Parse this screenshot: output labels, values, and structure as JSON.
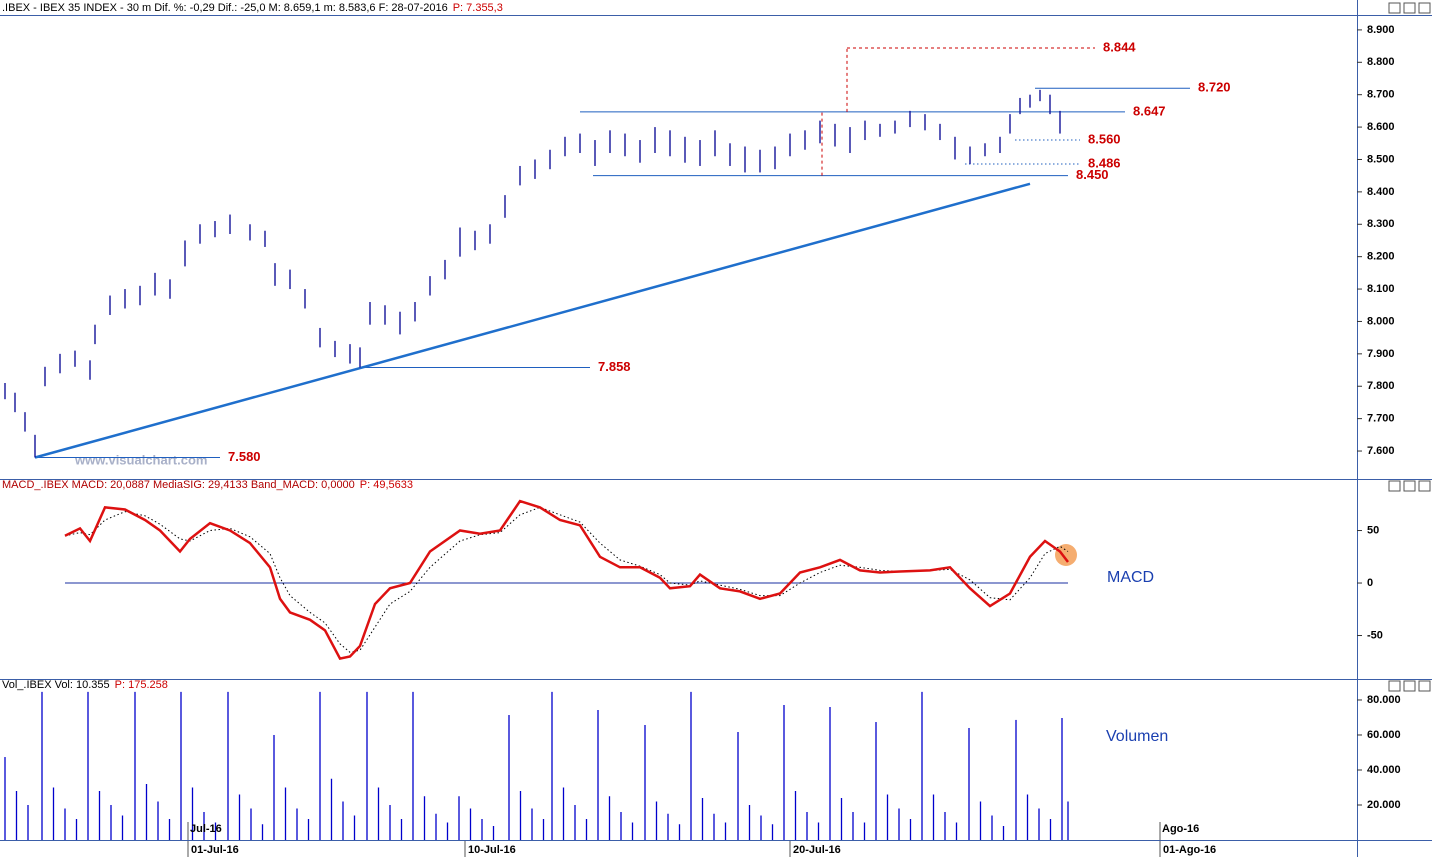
{
  "chart_data": [
    {
      "type": "range",
      "title": ".IBEX - IBEX 35 INDEX - 30 m  Dif. %: -0,29  Dif.: -25,0  M: 8.659,1  m: 8.583,6  F: 28-07-2016",
      "title_price": "P: 7.355,3",
      "watermark": "www.visualchart.com",
      "color": "#13139a",
      "xlim": [
        0,
        271.4
      ],
      "ylim": [
        7526,
        8946
      ],
      "yticks": [
        {
          "value": 7600,
          "label": "7.600"
        },
        {
          "value": 7700,
          "label": "7.700"
        },
        {
          "value": 7800,
          "label": "7.800"
        },
        {
          "value": 7900,
          "label": "7.900"
        },
        {
          "value": 8000,
          "label": "8.000"
        },
        {
          "value": 8100,
          "label": "8.100"
        },
        {
          "value": 8200,
          "label": "8.200"
        },
        {
          "value": 8300,
          "label": "8.300"
        },
        {
          "value": 8400,
          "label": "8.400"
        },
        {
          "value": 8500,
          "label": "8.500"
        },
        {
          "value": 8600,
          "label": "8.600"
        },
        {
          "value": 8700,
          "label": "8.700"
        },
        {
          "value": 8800,
          "label": "8.800"
        },
        {
          "value": 8900,
          "label": "8.900"
        }
      ],
      "x": [
        1,
        3,
        5,
        7,
        9,
        12,
        15,
        18,
        19,
        22,
        25,
        28,
        31,
        34,
        37,
        40,
        43,
        46,
        50,
        53,
        55,
        58,
        61,
        64,
        67,
        70,
        72,
        74,
        77,
        80,
        83,
        86,
        89,
        92,
        95,
        98,
        101,
        104,
        107,
        110,
        113,
        116,
        119,
        122,
        125,
        128,
        131,
        134,
        137,
        140,
        143,
        146,
        149,
        152,
        155,
        158,
        161,
        164,
        167,
        170,
        173,
        176,
        179,
        182,
        185,
        188,
        191,
        194,
        197,
        200,
        202,
        204,
        206,
        208,
        210,
        212
      ],
      "high": [
        7810,
        7780,
        7720,
        7650,
        7860,
        7900,
        7910,
        7880,
        7990,
        8080,
        8100,
        8110,
        8150,
        8130,
        8250,
        8300,
        8310,
        8330,
        8300,
        8280,
        8180,
        8160,
        8100,
        7980,
        7940,
        7930,
        7920,
        8060,
        8050,
        8030,
        8060,
        8140,
        8190,
        8290,
        8280,
        8300,
        8390,
        8480,
        8500,
        8530,
        8570,
        8580,
        8560,
        8590,
        8580,
        8560,
        8600,
        8590,
        8570,
        8560,
        8590,
        8550,
        8540,
        8530,
        8540,
        8580,
        8590,
        8620,
        8610,
        8600,
        8620,
        8610,
        8620,
        8650,
        8640,
        8610,
        8570,
        8540,
        8550,
        8570,
        8640,
        8690,
        8700,
        8715,
        8700,
        8650
      ],
      "low": [
        7760,
        7720,
        7660,
        7580,
        7800,
        7840,
        7860,
        7820,
        7930,
        8020,
        8040,
        8050,
        8080,
        8070,
        8170,
        8240,
        8260,
        8270,
        8250,
        8230,
        8110,
        8100,
        8040,
        7920,
        7890,
        7870,
        7858,
        7990,
        7990,
        7960,
        8000,
        8080,
        8130,
        8200,
        8220,
        8240,
        8320,
        8420,
        8440,
        8470,
        8510,
        8520,
        8480,
        8520,
        8510,
        8490,
        8520,
        8510,
        8490,
        8480,
        8510,
        8480,
        8460,
        8460,
        8470,
        8510,
        8530,
        8550,
        8540,
        8520,
        8560,
        8570,
        8580,
        8600,
        8590,
        8560,
        8500,
        8486,
        8510,
        8520,
        8580,
        8640,
        8660,
        8680,
        8640,
        8580
      ],
      "levels": [
        {
          "value": 8844,
          "label": "8.844",
          "x": [
            169.4,
            219
          ],
          "style": "dashed",
          "color": "#cc0000"
        },
        {
          "value": 8720,
          "label": "8.720",
          "x": [
            207,
            238
          ],
          "style": "solid",
          "color": "#1f5fbf"
        },
        {
          "value": 8647,
          "label": "8.647",
          "x": [
            116,
            225
          ],
          "style": "solid",
          "color": "#1f5fbf"
        },
        {
          "value": 8560,
          "label": "8.560",
          "x": [
            203,
            216
          ],
          "style": "dotted",
          "color": "#1f5fbf"
        },
        {
          "value": 8486,
          "label": "8.486",
          "x": [
            193,
            216
          ],
          "style": "dotted",
          "color": "#1f5fbf"
        },
        {
          "value": 8450,
          "label": "8.450",
          "x": [
            118.6,
            213.6
          ],
          "style": "solid",
          "color": "#1f5fbf"
        },
        {
          "value": 7858,
          "label": "7.858",
          "x": [
            73,
            118
          ],
          "style": "solid",
          "color": "#1f5fbf"
        },
        {
          "value": 7580,
          "label": "7.580",
          "x": [
            7,
            44
          ],
          "style": "solid",
          "color": "#1f5fbf"
        }
      ],
      "vlines": [
        {
          "x": 169.4,
          "range": [
            8647,
            8844
          ]
        },
        {
          "x": 164.4,
          "range": [
            8450,
            8647
          ]
        }
      ],
      "trendline": {
        "x": [
          7,
          206
        ],
        "values": [
          7580,
          8425
        ],
        "color": "#1f6fcc"
      }
    },
    {
      "type": "line",
      "title": "MACD_.IBEX MACD: 20,0887  MediaSIG: 29,4133  Band_MACD: 0,0000",
      "title_price": "P: 49,5633",
      "label": "MACD",
      "xlim": [
        0,
        271.4
      ],
      "ylim": [
        -87.6,
        88.6
      ],
      "yticks": [
        -50,
        0,
        50
      ],
      "x": [
        13,
        16,
        18,
        21,
        25,
        29,
        32,
        36,
        38,
        42,
        46,
        50,
        54,
        56,
        58,
        62,
        65,
        68,
        70,
        72,
        75,
        78,
        82,
        86,
        92,
        96,
        100,
        104,
        108,
        112,
        116,
        120,
        124,
        128,
        132,
        134,
        138,
        140,
        144,
        148,
        152,
        156,
        160,
        164,
        168,
        172,
        176,
        180,
        186,
        190,
        194,
        198,
        202,
        206,
        209,
        212,
        213.6
      ],
      "series": [
        {
          "color": "#dd1111",
          "style": "solid",
          "values": [
            45,
            52,
            40,
            72,
            70,
            60,
            50,
            30,
            42,
            57,
            50,
            38,
            15,
            -15,
            -28,
            -35,
            -45,
            -72,
            -70,
            -60,
            -20,
            -5,
            0,
            30,
            50,
            47,
            50,
            78,
            72,
            60,
            55,
            25,
            15,
            15,
            5,
            -5,
            -3,
            8,
            -5,
            -8,
            -15,
            -10,
            10,
            15,
            22,
            12,
            10,
            11,
            12,
            15,
            -5,
            -22,
            -10,
            25,
            40,
            30,
            20
          ]
        },
        {
          "color": "#000000",
          "style": "dotted",
          "values": [
            45,
            48,
            46,
            60,
            68,
            64,
            56,
            42,
            40,
            50,
            52,
            44,
            28,
            5,
            -12,
            -28,
            -38,
            -58,
            -66,
            -64,
            -42,
            -20,
            -8,
            15,
            40,
            46,
            48,
            65,
            72,
            65,
            58,
            38,
            22,
            16,
            8,
            0,
            -2,
            2,
            -2,
            -6,
            -12,
            -12,
            0,
            10,
            17,
            15,
            12,
            11,
            12,
            13,
            3,
            -14,
            -16,
            5,
            28,
            35,
            30
          ]
        }
      ]
    },
    {
      "type": "bar",
      "title": "Vol_.IBEX Vol: 10.355",
      "title_price": "P: 175.258",
      "label": "Volumen",
      "color": "#0000cc",
      "xlim": [
        0,
        271.4
      ],
      "ylim": [
        0,
        85700
      ],
      "yticks": [
        {
          "value": 20000,
          "label": "20.000"
        },
        {
          "value": 40000,
          "label": "40.000"
        },
        {
          "value": 60000,
          "label": "60.000"
        },
        {
          "value": 80000,
          "label": "80.000"
        }
      ],
      "xticks": [
        {
          "value": 37.6,
          "label": "01-Jul-16"
        },
        {
          "value": 93,
          "label": "10-Jul-16"
        },
        {
          "value": 158,
          "label": "20-Jul-16"
        },
        {
          "value": 232,
          "label": "01-Ago-16"
        }
      ],
      "month_ticks": [
        {
          "value": 37.6,
          "label": "Jul-16"
        },
        {
          "value": 232,
          "label": "Ago-16"
        }
      ],
      "x": [
        1,
        3.3,
        5.6,
        8.4,
        10.7,
        13,
        15.3,
        17.6,
        19.9,
        22.2,
        24.5,
        27,
        29.3,
        31.6,
        33.9,
        36.2,
        38.5,
        40.8,
        43.1,
        45.6,
        47.9,
        50.2,
        52.5,
        54.8,
        57.1,
        59.4,
        61.7,
        64,
        66.3,
        68.6,
        70.9,
        73.4,
        75.7,
        78,
        80.3,
        82.6,
        84.9,
        87.2,
        89.5,
        91.8,
        94.1,
        96.4,
        98.7,
        101.8,
        104.1,
        106.4,
        108.7,
        110.4,
        112.7,
        115,
        117.3,
        119.6,
        121.9,
        124.2,
        126.5,
        129,
        131.3,
        133.6,
        135.9,
        138.2,
        140.5,
        142.8,
        145.1,
        147.6,
        149.9,
        152.2,
        154.5,
        156.8,
        159.1,
        161.4,
        163.7,
        166,
        168.3,
        170.6,
        172.9,
        175.2,
        177.5,
        179.8,
        182.1,
        184.4,
        186.7,
        189,
        191.3,
        193.8,
        196.1,
        198.4,
        200.7,
        203.2,
        205.5,
        207.8,
        210.1,
        212.4,
        213.6
      ],
      "values": [
        47400,
        28000,
        20000,
        84600,
        30000,
        18000,
        12000,
        84600,
        28000,
        20000,
        14000,
        84600,
        32000,
        22000,
        12000,
        84600,
        30000,
        16000,
        10000,
        84600,
        26000,
        18000,
        9000,
        60000,
        30000,
        18000,
        12000,
        84600,
        35000,
        22000,
        14000,
        84600,
        30000,
        20000,
        12000,
        84600,
        25000,
        15000,
        10000,
        25000,
        18000,
        12000,
        8000,
        71400,
        28000,
        18000,
        12000,
        84600,
        30000,
        20000,
        12000,
        74300,
        25000,
        16000,
        10000,
        65700,
        22000,
        15000,
        9000,
        84600,
        24000,
        15000,
        10000,
        61700,
        20000,
        14000,
        9000,
        77100,
        28000,
        16000,
        10000,
        76000,
        24000,
        16000,
        10000,
        67400,
        26000,
        18000,
        12000,
        84600,
        26000,
        16000,
        10000,
        64000,
        22000,
        14000,
        8000,
        68600,
        26000,
        18000,
        12000,
        69700,
        22000
      ]
    }
  ]
}
